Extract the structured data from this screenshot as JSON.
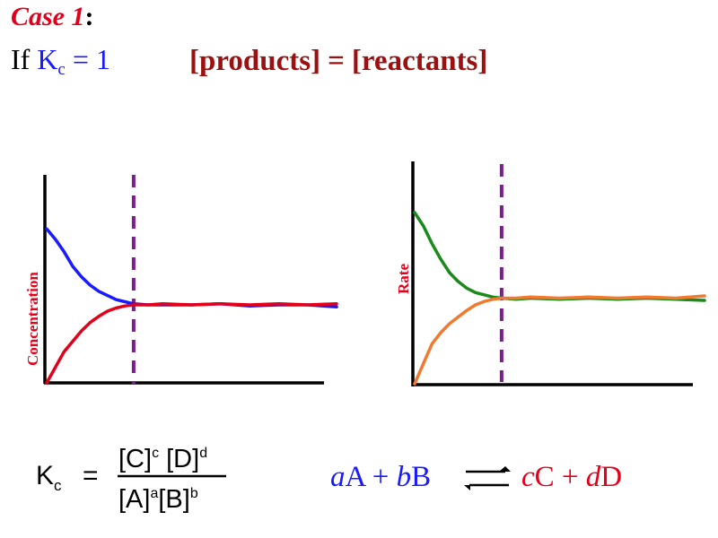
{
  "title": {
    "case": "Case 1",
    "colon": ":"
  },
  "condition": {
    "prefix": "If ",
    "kc_symbol": "K",
    "kc_sub": "c",
    "kc_equals": " = 1"
  },
  "statement": {
    "left": "[products]",
    "eq": "=",
    "right": "[reactants]"
  },
  "colors": {
    "accent_red": "#e3001b",
    "dark_red": "#9b1111",
    "blue": "#1a1aff",
    "green": "#1a8a1a",
    "orange": "#f07a30",
    "purple_dashed": "#7b1f8c",
    "axis": "#000000"
  },
  "chart_data": [
    {
      "type": "line",
      "ylabel": "Concentration",
      "xlabel": "",
      "grid": false,
      "equilibrium_marker_x": 3,
      "xlim": [
        0,
        10
      ],
      "ylim": [
        0,
        10
      ],
      "series": [
        {
          "color": "#1a1aff",
          "x": [
            0,
            0.3,
            0.6,
            0.9,
            1.2,
            1.5,
            1.8,
            2.1,
            2.4,
            2.7,
            3.0,
            3.5,
            4,
            5,
            6,
            7,
            8,
            9,
            10
          ],
          "y": [
            7.4,
            6.9,
            6.3,
            5.6,
            5.1,
            4.7,
            4.4,
            4.2,
            4.0,
            3.9,
            3.8,
            3.75,
            3.75,
            3.75,
            3.8,
            3.7,
            3.75,
            3.75,
            3.65
          ]
        },
        {
          "color": "#e3001b",
          "x": [
            0,
            0.2,
            0.4,
            0.6,
            0.9,
            1.2,
            1.5,
            1.8,
            2.1,
            2.4,
            2.7,
            3.0,
            3.5,
            4,
            5,
            6,
            7,
            8,
            9,
            10
          ],
          "y": [
            0.0,
            0.5,
            1.0,
            1.5,
            2.0,
            2.5,
            2.9,
            3.2,
            3.45,
            3.6,
            3.7,
            3.75,
            3.75,
            3.8,
            3.75,
            3.8,
            3.75,
            3.8,
            3.75,
            3.8
          ]
        }
      ]
    },
    {
      "type": "line",
      "ylabel": "Rate",
      "xlabel": "",
      "grid": false,
      "equilibrium_marker_x": 3,
      "xlim": [
        0,
        10
      ],
      "ylim": [
        0,
        10
      ],
      "series": [
        {
          "color": "#1a8a1a",
          "x": [
            0,
            0.3,
            0.6,
            0.9,
            1.2,
            1.5,
            1.8,
            2.1,
            2.4,
            2.7,
            3.0,
            3.5,
            4,
            5,
            6,
            7,
            8,
            9,
            10
          ],
          "y": [
            7.7,
            7.1,
            6.3,
            5.6,
            5.0,
            4.6,
            4.3,
            4.1,
            4.0,
            3.9,
            3.85,
            3.8,
            3.85,
            3.8,
            3.85,
            3.8,
            3.85,
            3.8,
            3.75
          ]
        },
        {
          "color": "#f07a30",
          "x": [
            0,
            0.2,
            0.4,
            0.6,
            0.9,
            1.2,
            1.5,
            1.8,
            2.1,
            2.4,
            2.7,
            3.0,
            3.5,
            4,
            5,
            6,
            7,
            8,
            9,
            10
          ],
          "y": [
            0.0,
            0.6,
            1.2,
            1.8,
            2.3,
            2.7,
            3.0,
            3.3,
            3.55,
            3.7,
            3.8,
            3.85,
            3.85,
            3.9,
            3.85,
            3.9,
            3.85,
            3.9,
            3.85,
            3.95
          ]
        }
      ]
    }
  ],
  "kc_formula": {
    "k": "K",
    "k_sub": "c",
    "eq": "=",
    "numerator": {
      "c1": "[C]",
      "c1_exp": "c",
      "c2": "[D]",
      "c2_exp": "d"
    },
    "denominator": {
      "d1": "[A]",
      "d1_exp": "a",
      "d2": "[B]",
      "d2_exp": "b"
    }
  },
  "reaction": {
    "coef_a": "a",
    "species_a": "A",
    "plus1": " + ",
    "coef_b": "b",
    "species_b": "B",
    "coef_c": "c",
    "species_c": "C",
    "plus2": " + ",
    "coef_d": "d",
    "species_d": "D"
  }
}
